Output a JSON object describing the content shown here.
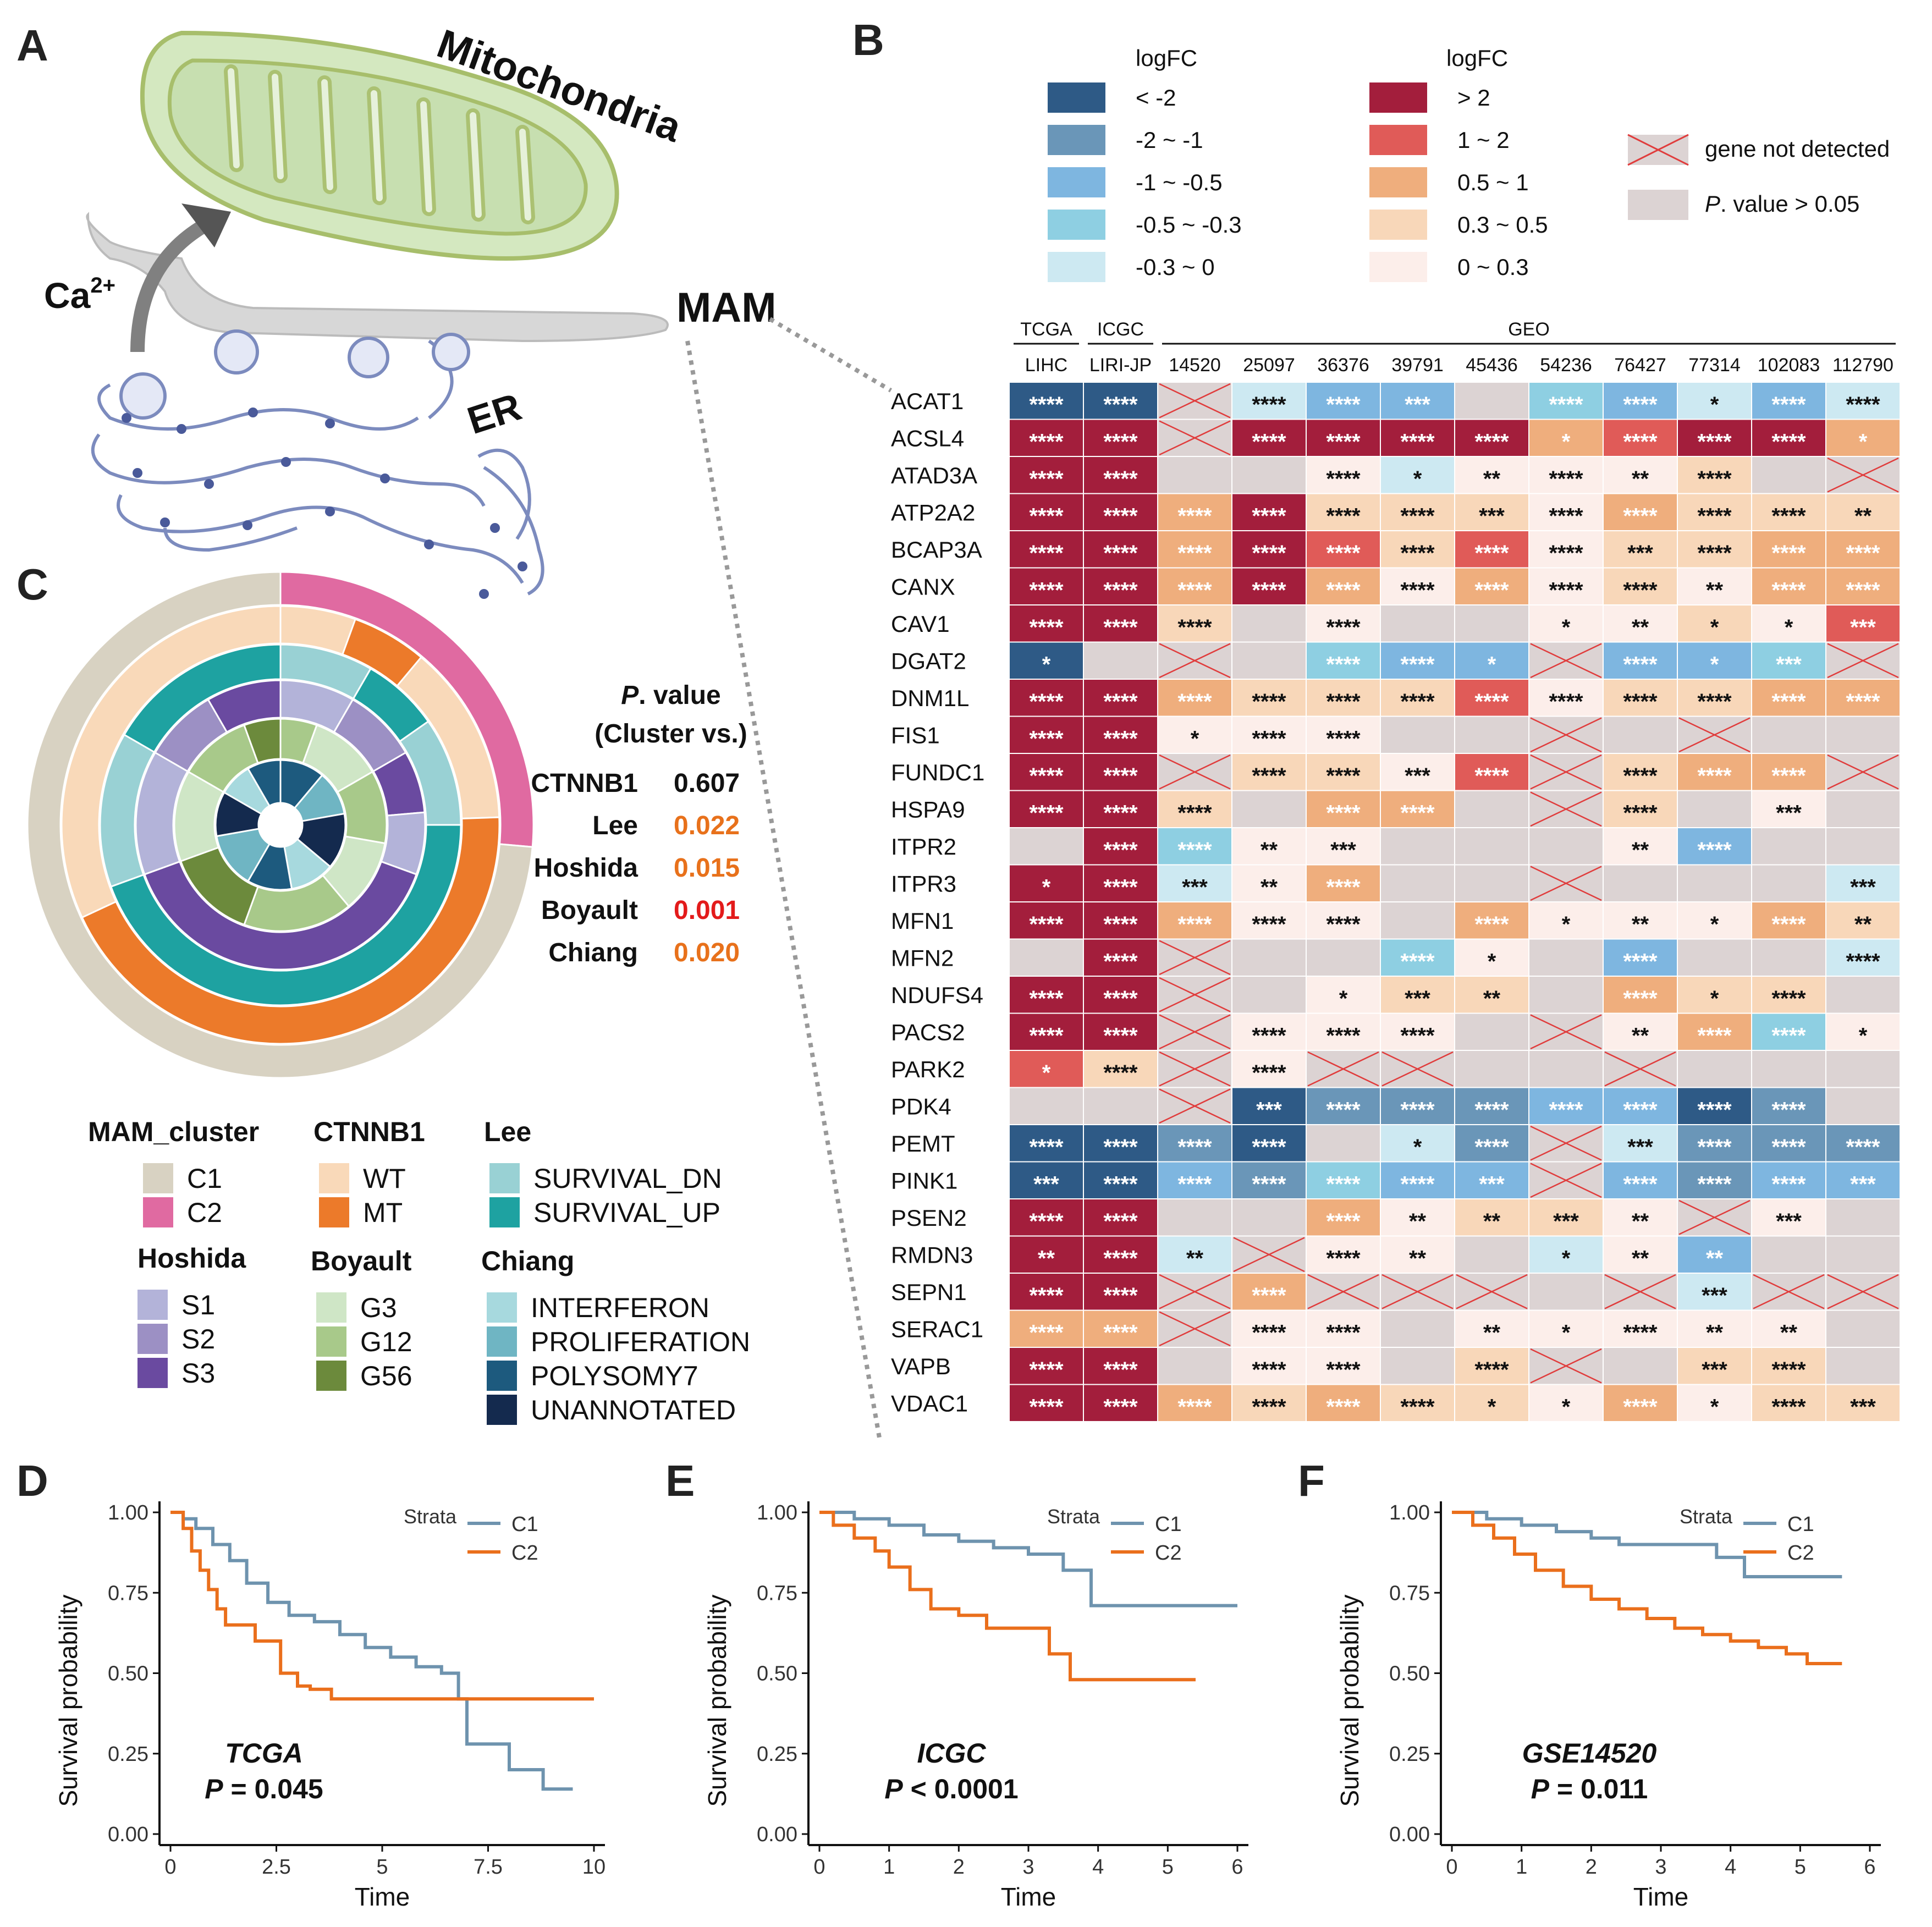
{
  "panel_labels": {
    "a": "A",
    "b": "B",
    "c": "C",
    "d": "D",
    "e": "E",
    "f": "F"
  },
  "panel_a": {
    "mito": "Mitochondria",
    "er": "ER",
    "ca": "Ca",
    "ca_sup": "2+",
    "mam": "MAM"
  },
  "colors": {
    "neg": [
      "#2E5A86",
      "#6A96B8",
      "#7EB6E0",
      "#8ECFE2",
      "#CDE9F2"
    ],
    "pos": [
      "#A31E3C",
      "#E05B58",
      "#EFAE7D",
      "#F8D7B9",
      "#FCEEEA"
    ],
    "ns": "#DCD3D3",
    "cross": "#E03C3C",
    "c1": "#6E93AE",
    "c2": "#EA6F1C",
    "p_orange": "#E8711B",
    "p_red": "#E31B1B"
  },
  "legend_b": {
    "title_neg": "logFC",
    "title_pos": "logFC",
    "neg_labels": [
      "< -2",
      "-2 ~ -1",
      "-1 ~ -0.5",
      "-0.5 ~ -0.3",
      "-0.3 ~ 0"
    ],
    "pos_labels": [
      "> 2",
      "1 ~ 2",
      "0.5 ~ 1",
      "0.3 ~ 0.5",
      "0 ~ 0.3"
    ],
    "not_detected": "gene not detected",
    "pval_italic": "P",
    "pval_rest": ". value > 0.05"
  },
  "heatmap": {
    "groups": [
      {
        "name": "TCGA",
        "span": 1
      },
      {
        "name": "ICGC",
        "span": 1
      },
      {
        "name": "GEO",
        "span": 10
      }
    ],
    "columns": [
      "LIHC",
      "LIRI-JP",
      "14520",
      "25097",
      "36376",
      "39791",
      "45436",
      "54236",
      "76427",
      "77314",
      "102083",
      "112790"
    ],
    "genes": [
      "ACAT1",
      "ACSL4",
      "ATAD3A",
      "ATP2A2",
      "BCAP3A",
      "CANX",
      "CAV1",
      "DGAT2",
      "DNM1L",
      "FIS1",
      "FUNDC1",
      "HSPA9",
      "ITPR2",
      "ITPR3",
      "MFN1",
      "MFN2",
      "NDUFS4",
      "PACS2",
      "PARK2",
      "PDK4",
      "PEMT",
      "PINK1",
      "PSEN2",
      "RMDN3",
      "SEPN1",
      "SERAC1",
      "VAPB",
      "VDAC1"
    ],
    "cells": [
      [
        "N1:****",
        "N1:****",
        "X",
        "N5:****",
        "N3:****",
        "N3:***",
        "S",
        "N4:****",
        "N3:****",
        "N5:*",
        "N3:****",
        "N5:****"
      ],
      [
        "P1:****",
        "P1:****",
        "X",
        "P1:****",
        "P1:****",
        "P1:****",
        "P1:****",
        "P3:*",
        "P2:****",
        "P1:****",
        "P1:****",
        "P3:*"
      ],
      [
        "P1:****",
        "P1:****",
        "S",
        "S",
        "P5:****",
        "N5:*",
        "P5:**",
        "P5:****",
        "P5:**",
        "P4:****",
        "S",
        "X"
      ],
      [
        "P1:****",
        "P1:****",
        "P3:****",
        "P1:****",
        "P4:****",
        "P4:****",
        "P4:***",
        "P5:****",
        "P3:****",
        "P4:****",
        "P4:****",
        "P4:**"
      ],
      [
        "P1:****",
        "P1:****",
        "P3:****",
        "P1:****",
        "P2:****",
        "P4:****",
        "P2:****",
        "P5:****",
        "P4:***",
        "P4:****",
        "P3:****",
        "P3:****"
      ],
      [
        "P1:****",
        "P1:****",
        "P3:****",
        "P1:****",
        "P3:****",
        "P5:****",
        "P3:****",
        "P5:****",
        "P4:****",
        "P5:**",
        "P3:****",
        "P3:****"
      ],
      [
        "P1:****",
        "P1:****",
        "P4:****",
        "S",
        "P5:****",
        "S",
        "S",
        "P5:*",
        "P5:**",
        "P4:*",
        "P5:*",
        "P2:***"
      ],
      [
        "N1:*",
        "S",
        "X",
        "S",
        "N4:****",
        "N3:****",
        "N3:*",
        "X",
        "N3:****",
        "N3:*",
        "N4:***",
        "X"
      ],
      [
        "P1:****",
        "P1:****",
        "P3:****",
        "P4:****",
        "P4:****",
        "P4:****",
        "P2:****",
        "P5:****",
        "P4:****",
        "P4:****",
        "P3:****",
        "P3:****"
      ],
      [
        "P1:****",
        "P1:****",
        "P5:*",
        "P5:****",
        "P5:****",
        "S",
        "S",
        "X",
        "S",
        "X",
        "S",
        "S"
      ],
      [
        "P1:****",
        "P1:****",
        "X",
        "P4:****",
        "P4:****",
        "P5:***",
        "P2:****",
        "X",
        "P4:****",
        "P3:****",
        "P3:****",
        "X"
      ],
      [
        "P1:****",
        "P1:****",
        "P4:****",
        "S",
        "P3:****",
        "P3:****",
        "S",
        "X",
        "P4:****",
        "S",
        "P5:***",
        "S"
      ],
      [
        "S",
        "P1:****",
        "N4:****",
        "P5:**",
        "P5:***",
        "S",
        "S",
        "S",
        "P5:**",
        "N3:****",
        "S",
        "S"
      ],
      [
        "P1:*",
        "P1:****",
        "N5:***",
        "P5:**",
        "P3:****",
        "S",
        "S",
        "X",
        "S",
        "S",
        "S",
        "N5:***"
      ],
      [
        "P1:****",
        "P1:****",
        "P3:****",
        "P5:****",
        "P5:****",
        "S",
        "P3:****",
        "P5:*",
        "P5:**",
        "P5:*",
        "P3:****",
        "P4:**"
      ],
      [
        "S",
        "P1:****",
        "X",
        "S",
        "S",
        "N4:****",
        "P5:*",
        "S",
        "N3:****",
        "S",
        "S",
        "N5:****"
      ],
      [
        "P1:****",
        "P1:****",
        "X",
        "S",
        "P5:*",
        "P4:***",
        "P4:**",
        "S",
        "P3:****",
        "P4:*",
        "P4:****",
        "S"
      ],
      [
        "P1:****",
        "P1:****",
        "X",
        "P5:****",
        "P5:****",
        "P5:****",
        "S",
        "X",
        "P5:**",
        "P3:****",
        "N4:****",
        "P5:*"
      ],
      [
        "P2:*",
        "P4:****",
        "X",
        "P5:****",
        "X",
        "X",
        "S",
        "S",
        "X",
        "S",
        "S",
        "S"
      ],
      [
        "S",
        "S",
        "X",
        "N1:***",
        "N2:****",
        "N2:****",
        "N2:****",
        "N3:****",
        "N3:****",
        "N1:****",
        "N2:****",
        "S"
      ],
      [
        "N1:****",
        "N1:****",
        "N2:****",
        "N1:****",
        "S",
        "N5:*",
        "N2:****",
        "X",
        "N5:***",
        "N2:****",
        "N2:****",
        "N2:****"
      ],
      [
        "N1:***",
        "N1:****",
        "N3:****",
        "N2:****",
        "N4:****",
        "N3:****",
        "N3:***",
        "X",
        "N3:****",
        "N2:****",
        "N3:****",
        "N3:***"
      ],
      [
        "P1:****",
        "P1:****",
        "S",
        "S",
        "P3:****",
        "P5:**",
        "P4:**",
        "P4:***",
        "P5:**",
        "X",
        "P5:***",
        "S"
      ],
      [
        "P1:**",
        "P1:****",
        "N5:**",
        "X",
        "P5:****",
        "P5:**",
        "S",
        "N5:*",
        "P5:**",
        "N3:**",
        "S",
        "S"
      ],
      [
        "P1:****",
        "P1:****",
        "X",
        "P3:****",
        "X",
        "X",
        "X",
        "S",
        "X",
        "N5:***",
        "X",
        "X"
      ],
      [
        "P3:****",
        "P3:****",
        "X",
        "P5:****",
        "P5:****",
        "S",
        "P5:**",
        "P5:*",
        "P5:****",
        "P5:**",
        "P5:**",
        "S"
      ],
      [
        "P1:****",
        "P1:****",
        "S",
        "P5:****",
        "P5:****",
        "S",
        "P4:****",
        "X",
        "S",
        "P4:***",
        "P4:****",
        "S"
      ],
      [
        "P1:****",
        "P1:****",
        "P3:****",
        "P4:****",
        "P3:****",
        "P4:****",
        "P4:*",
        "P5:*",
        "P3:****",
        "P5:*",
        "P4:****",
        "P4:***"
      ]
    ]
  },
  "panel_c": {
    "pvalue_title_italic": "P",
    "pvalue_title_rest": ". value",
    "pvalue_subtitle": "(Cluster vs.)",
    "pvalues": [
      {
        "name": "CTNNB1",
        "value": "0.607",
        "color": "#111111"
      },
      {
        "name": "Lee",
        "value": "0.022",
        "color": "#E8711B"
      },
      {
        "name": "Hoshida",
        "value": "0.015",
        "color": "#E8711B"
      },
      {
        "name": "Boyault",
        "value": "0.001",
        "color": "#E31B1B"
      },
      {
        "name": "Chiang",
        "value": "0.020",
        "color": "#E8711B"
      }
    ],
    "legend": [
      {
        "title": "MAM_cluster",
        "items": [
          {
            "label": "C1",
            "color": "#D8D2C2"
          },
          {
            "label": "C2",
            "color": "#E06AA1"
          }
        ]
      },
      {
        "title": "CTNNB1",
        "items": [
          {
            "label": "WT",
            "color": "#F9D9B9"
          },
          {
            "label": "MT",
            "color": "#EC7A2A"
          }
        ]
      },
      {
        "title": "Lee",
        "items": [
          {
            "label": "SURVIVAL_DN",
            "color": "#99D1D4"
          },
          {
            "label": "SURVIVAL_UP",
            "color": "#1EA2A1"
          }
        ]
      },
      {
        "title": "Hoshida",
        "items": [
          {
            "label": "S1",
            "color": "#B3B3D9"
          },
          {
            "label": "S2",
            "color": "#9C90C4"
          },
          {
            "label": "S3",
            "color": "#6A4AA0"
          }
        ]
      },
      {
        "title": "Boyault",
        "items": [
          {
            "label": "G3",
            "color": "#CFE6C6"
          },
          {
            "label": "G12",
            "color": "#A8C98A"
          },
          {
            "label": "G56",
            "color": "#6C8A3C"
          }
        ]
      },
      {
        "title": "Chiang",
        "items": [
          {
            "label": "INTERFERON",
            "color": "#A7D9DE"
          },
          {
            "label": "PROLIFERATION",
            "color": "#6FB5C3"
          },
          {
            "label": "POLYSOMY7",
            "color": "#1D5A7E"
          },
          {
            "label": "UNANNOTATED",
            "color": "#142A4E"
          }
        ]
      }
    ]
  },
  "chart_data": [
    {
      "type": "line",
      "panel": "D",
      "title": "TCGA",
      "p_label": "P",
      "p_value": "= 0.045",
      "xlabel": "Time",
      "ylabel": "Survival probability",
      "xlim": [
        0,
        10
      ],
      "ylim": [
        0,
        1
      ],
      "xticks": [
        "0",
        "2.5",
        "5",
        "7.5",
        "10"
      ],
      "xtick_values": [
        0,
        2.5,
        5,
        7.5,
        10
      ],
      "yticks": [
        "0.00",
        "0.25",
        "0.50",
        "0.75",
        "1.00"
      ],
      "legend_title": "Strata",
      "series": [
        {
          "name": "C1",
          "x": [
            0,
            0.3,
            0.6,
            1,
            1.4,
            1.8,
            2.3,
            2.8,
            3.4,
            4,
            4.6,
            5.2,
            5.8,
            6.4,
            6.8,
            7,
            8,
            8.8,
            9.5
          ],
          "y": [
            1,
            0.98,
            0.95,
            0.9,
            0.85,
            0.78,
            0.72,
            0.68,
            0.66,
            0.62,
            0.58,
            0.55,
            0.52,
            0.5,
            0.42,
            0.28,
            0.2,
            0.14,
            0.14
          ]
        },
        {
          "name": "C2",
          "x": [
            0,
            0.3,
            0.5,
            0.7,
            0.9,
            1.1,
            1.3,
            2,
            2.6,
            3,
            3.3,
            3.8,
            10
          ],
          "y": [
            1,
            0.95,
            0.88,
            0.82,
            0.76,
            0.7,
            0.65,
            0.6,
            0.5,
            0.46,
            0.45,
            0.42,
            0.42
          ]
        }
      ]
    },
    {
      "type": "line",
      "panel": "E",
      "title": "ICGC",
      "p_label": "P",
      "p_value": "< 0.0001",
      "xlabel": "Time",
      "ylabel": "Survival probability",
      "xlim": [
        0,
        6
      ],
      "ylim": [
        0,
        1
      ],
      "xticks": [
        "0",
        "1",
        "2",
        "3",
        "4",
        "5",
        "6"
      ],
      "xtick_values": [
        0,
        1,
        2,
        3,
        4,
        5,
        6
      ],
      "yticks": [
        "0.00",
        "0.25",
        "0.50",
        "0.75",
        "1.00"
      ],
      "legend_title": "Strata",
      "series": [
        {
          "name": "C1",
          "x": [
            0,
            0.5,
            1,
            1.5,
            2,
            2.5,
            3,
            3.5,
            3.9,
            6
          ],
          "y": [
            1,
            0.98,
            0.96,
            0.93,
            0.91,
            0.89,
            0.87,
            0.82,
            0.71,
            0.71
          ]
        },
        {
          "name": "C2",
          "x": [
            0,
            0.2,
            0.5,
            0.8,
            1,
            1.3,
            1.6,
            2,
            2.4,
            2.8,
            3.3,
            3.6,
            5.4
          ],
          "y": [
            1,
            0.96,
            0.92,
            0.88,
            0.83,
            0.76,
            0.7,
            0.68,
            0.64,
            0.64,
            0.56,
            0.48,
            0.48
          ]
        }
      ]
    },
    {
      "type": "line",
      "panel": "F",
      "title": "GSE14520",
      "p_label": "P",
      "p_value": "= 0.011",
      "xlabel": "Time",
      "ylabel": "Survival probability",
      "xlim": [
        0,
        6
      ],
      "ylim": [
        0,
        1
      ],
      "xticks": [
        "0",
        "1",
        "2",
        "3",
        "4",
        "5",
        "6"
      ],
      "xtick_values": [
        0,
        1,
        2,
        3,
        4,
        5,
        6
      ],
      "yticks": [
        "0.00",
        "0.25",
        "0.50",
        "0.75",
        "1.00"
      ],
      "legend_title": "Strata",
      "series": [
        {
          "name": "C1",
          "x": [
            0,
            0.5,
            1,
            1.5,
            2,
            2.4,
            3,
            3.8,
            4.2,
            5.6
          ],
          "y": [
            1,
            0.98,
            0.96,
            0.94,
            0.92,
            0.9,
            0.9,
            0.86,
            0.8,
            0.8
          ]
        },
        {
          "name": "C2",
          "x": [
            0,
            0.3,
            0.6,
            0.9,
            1.2,
            1.6,
            2,
            2.4,
            2.8,
            3.2,
            3.6,
            4,
            4.4,
            4.8,
            5.1,
            5.6
          ],
          "y": [
            1,
            0.96,
            0.92,
            0.87,
            0.82,
            0.77,
            0.73,
            0.7,
            0.67,
            0.64,
            0.62,
            0.6,
            0.58,
            0.56,
            0.53,
            0.53
          ]
        }
      ]
    }
  ]
}
